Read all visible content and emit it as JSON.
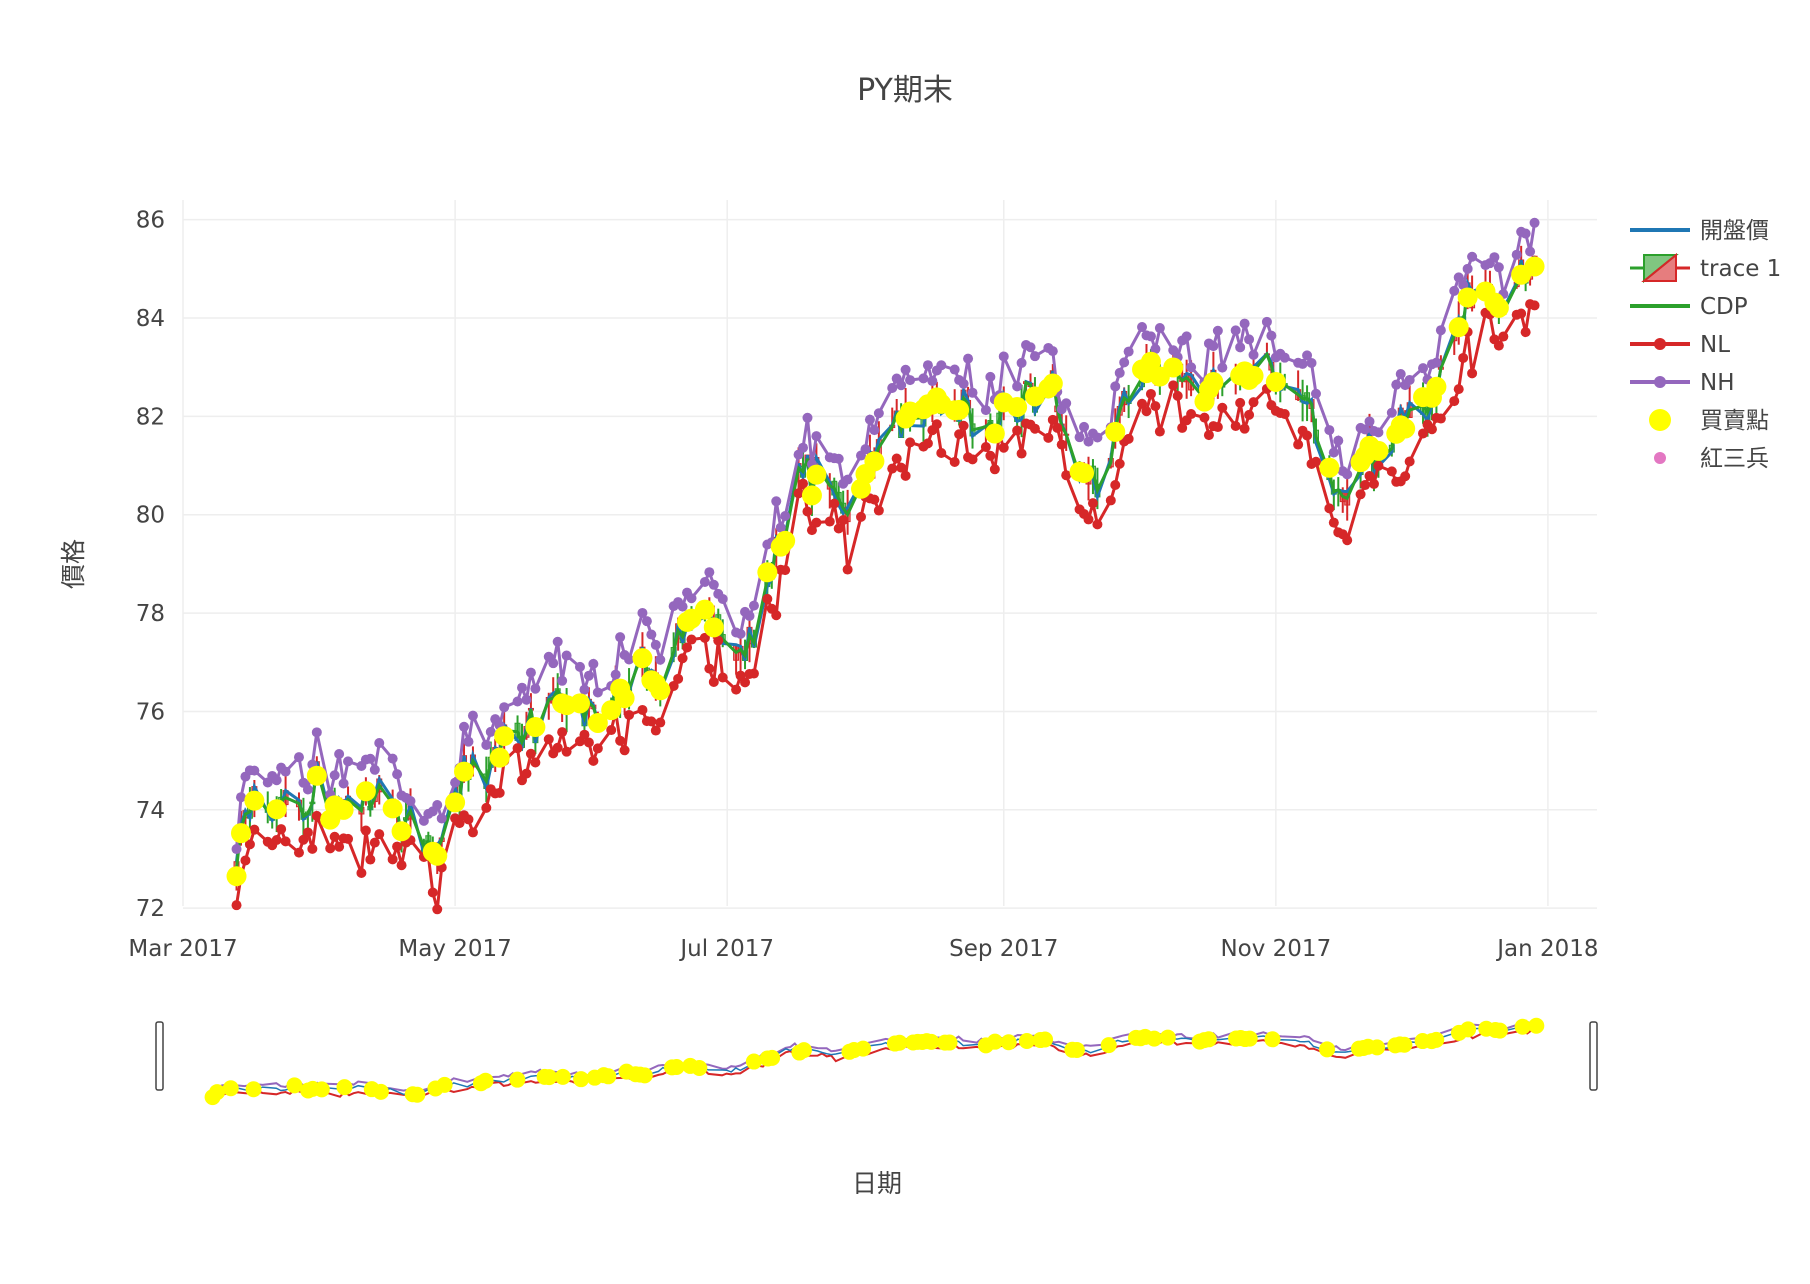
{
  "chart_data": {
    "type": "line",
    "title": "PY期末",
    "xlabel": "日期",
    "ylabel": "價格",
    "x_range": [
      "2017-03-01",
      "2018-01-12"
    ],
    "ylim": [
      71.8,
      86.4
    ],
    "y_ticks": [
      72,
      74,
      76,
      78,
      80,
      82,
      84,
      86
    ],
    "x_ticks": [
      {
        "date": "2017-03-01",
        "label": "Mar 2017"
      },
      {
        "date": "2017-05-01",
        "label": "May 2017"
      },
      {
        "date": "2017-07-01",
        "label": "Jul 2017"
      },
      {
        "date": "2017-09-01",
        "label": "Sep 2017"
      },
      {
        "date": "2017-11-01",
        "label": "Nov 2017"
      },
      {
        "date": "2018-01-01",
        "label": "Jan 2018"
      }
    ],
    "grid": true,
    "legend_position": "top-right",
    "range_slider": true,
    "colors": {
      "open": "#1f77b4",
      "candle_up": "#2ca02c",
      "candle_down": "#d62728",
      "cdp": "#2ca02c",
      "nl": "#d62728",
      "nh": "#9467bd",
      "signal": "#ffff00",
      "red3": "#e377c2",
      "grid": "#eeeeee"
    },
    "legend": [
      {
        "name": "開盤價",
        "kind": "line",
        "color": "#1f77b4"
      },
      {
        "name": "trace 1",
        "kind": "candlestick",
        "color": "#2ca02c"
      },
      {
        "name": "CDP",
        "kind": "line",
        "color": "#2ca02c"
      },
      {
        "name": "NL",
        "kind": "line-marker",
        "color": "#d62728"
      },
      {
        "name": "NH",
        "kind": "line-marker",
        "color": "#9467bd"
      },
      {
        "name": "買賣點",
        "kind": "marker",
        "color": "#ffff00"
      },
      {
        "name": "紅三兵",
        "kind": "marker-small",
        "color": "#e377c2"
      }
    ],
    "close_anchor_points": [
      [
        "2017-03-13",
        72.9
      ],
      [
        "2017-03-15",
        73.9
      ],
      [
        "2017-03-20",
        74.1
      ],
      [
        "2017-03-23",
        74.3
      ],
      [
        "2017-03-28",
        74.0
      ],
      [
        "2017-03-31",
        74.5
      ],
      [
        "2017-04-04",
        73.9
      ],
      [
        "2017-04-10",
        74.1
      ],
      [
        "2017-04-14",
        74.3
      ],
      [
        "2017-04-19",
        73.8
      ],
      [
        "2017-04-24",
        73.6
      ],
      [
        "2017-04-26",
        72.9
      ],
      [
        "2017-04-28",
        73.5
      ],
      [
        "2017-05-03",
        74.6
      ],
      [
        "2017-05-08",
        74.8
      ],
      [
        "2017-05-12",
        75.3
      ],
      [
        "2017-05-18",
        75.8
      ],
      [
        "2017-05-24",
        76.3
      ],
      [
        "2017-05-29",
        76.4
      ],
      [
        "2017-06-02",
        75.8
      ],
      [
        "2017-06-06",
        76.2
      ],
      [
        "2017-06-12",
        76.9
      ],
      [
        "2017-06-16",
        76.4
      ],
      [
        "2017-06-19",
        77.3
      ],
      [
        "2017-06-23",
        77.9
      ],
      [
        "2017-06-28",
        77.9
      ],
      [
        "2017-07-03",
        77.0
      ],
      [
        "2017-07-06",
        77.3
      ],
      [
        "2017-07-11",
        79.0
      ],
      [
        "2017-07-14",
        79.6
      ],
      [
        "2017-07-18",
        81.2
      ],
      [
        "2017-07-20",
        80.6
      ],
      [
        "2017-07-25",
        80.6
      ],
      [
        "2017-07-28",
        80.1
      ],
      [
        "2017-08-02",
        81.0
      ],
      [
        "2017-08-08",
        81.8
      ],
      [
        "2017-08-14",
        82.2
      ],
      [
        "2017-08-18",
        82.5
      ],
      [
        "2017-08-23",
        82.2
      ],
      [
        "2017-08-28",
        81.6
      ],
      [
        "2017-09-01",
        82.2
      ],
      [
        "2017-09-05",
        82.5
      ],
      [
        "2017-09-11",
        82.8
      ],
      [
        "2017-09-14",
        81.9
      ],
      [
        "2017-09-19",
        80.9
      ],
      [
        "2017-09-21",
        80.8
      ],
      [
        "2017-09-25",
        81.0
      ],
      [
        "2017-09-28",
        82.4
      ],
      [
        "2017-10-03",
        82.9
      ],
      [
        "2017-10-09",
        82.8
      ],
      [
        "2017-10-12",
        82.6
      ],
      [
        "2017-10-18",
        82.5
      ],
      [
        "2017-10-23",
        82.9
      ],
      [
        "2017-10-26",
        82.7
      ],
      [
        "2017-10-30",
        83.2
      ],
      [
        "2017-11-02",
        82.5
      ],
      [
        "2017-11-06",
        82.4
      ],
      [
        "2017-11-09",
        82.3
      ],
      [
        "2017-11-14",
        80.6
      ],
      [
        "2017-11-17",
        80.4
      ],
      [
        "2017-11-22",
        81.2
      ],
      [
        "2017-11-28",
        81.5
      ],
      [
        "2017-12-01",
        82.1
      ],
      [
        "2017-12-06",
        82.4
      ],
      [
        "2017-12-12",
        83.9
      ],
      [
        "2017-12-15",
        84.4
      ],
      [
        "2017-12-19",
        84.6
      ],
      [
        "2017-12-22",
        84.2
      ],
      [
        "2017-12-25",
        84.8
      ],
      [
        "2017-12-28",
        85.0
      ],
      [
        "2017-12-31",
        84.9
      ]
    ]
  }
}
